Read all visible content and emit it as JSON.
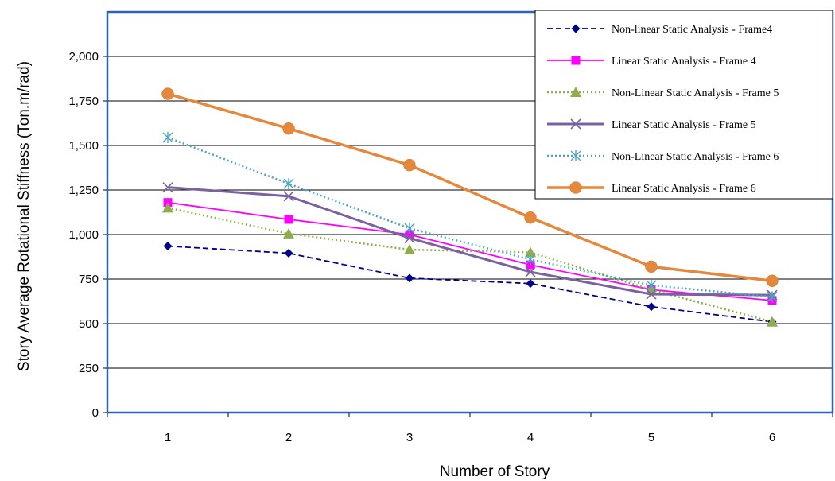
{
  "chart_data": {
    "type": "line",
    "xlabel": "Number of Story",
    "ylabel": "Story Average Rotational Stiffness (Ton.m/rad)",
    "ylim": [
      0,
      2250
    ],
    "x": [
      1,
      2,
      3,
      4,
      5,
      6
    ],
    "y_ticks": [
      "0",
      "250",
      "500",
      "750",
      "1,000",
      "1,250",
      "1,500",
      "1,750",
      "2,000"
    ],
    "x_ticks": [
      "1",
      "2",
      "3",
      "4",
      "5",
      "6"
    ],
    "grid": "horizontal",
    "legend_position": "top-right",
    "series": [
      {
        "name": "Non-linear Static Analysis - Frame4",
        "color": "#00008b",
        "dash": "dashed",
        "marker": "diamond",
        "values": [
          935,
          895,
          755,
          725,
          595,
          510
        ]
      },
      {
        "name": "Linear Static Analysis - Frame 4",
        "color": "#ff00ff",
        "dash": "solid",
        "marker": "square",
        "values": [
          1180,
          1085,
          1000,
          830,
          690,
          630
        ]
      },
      {
        "name": "Non-Linear Static Analysis - Frame 5",
        "color": "#8fad4a",
        "dash": "dotted",
        "marker": "triangle",
        "values": [
          1150,
          1005,
          915,
          900,
          690,
          510
        ]
      },
      {
        "name": "Linear Static Analysis - Frame 5",
        "color": "#7b61a0",
        "dash": "solid",
        "marker": "x",
        "values": [
          1265,
          1215,
          980,
          790,
          665,
          660
        ]
      },
      {
        "name": "Non-Linear Static Analysis - Frame 6",
        "color": "#4aa5c4",
        "dash": "dotted",
        "marker": "star",
        "values": [
          1545,
          1285,
          1035,
          860,
          715,
          650
        ]
      },
      {
        "name": "Linear Static Analysis - Frame 6",
        "color": "#e4883e",
        "dash": "solid",
        "marker": "circle",
        "values": [
          1790,
          1595,
          1390,
          1095,
          820,
          740
        ]
      }
    ]
  }
}
